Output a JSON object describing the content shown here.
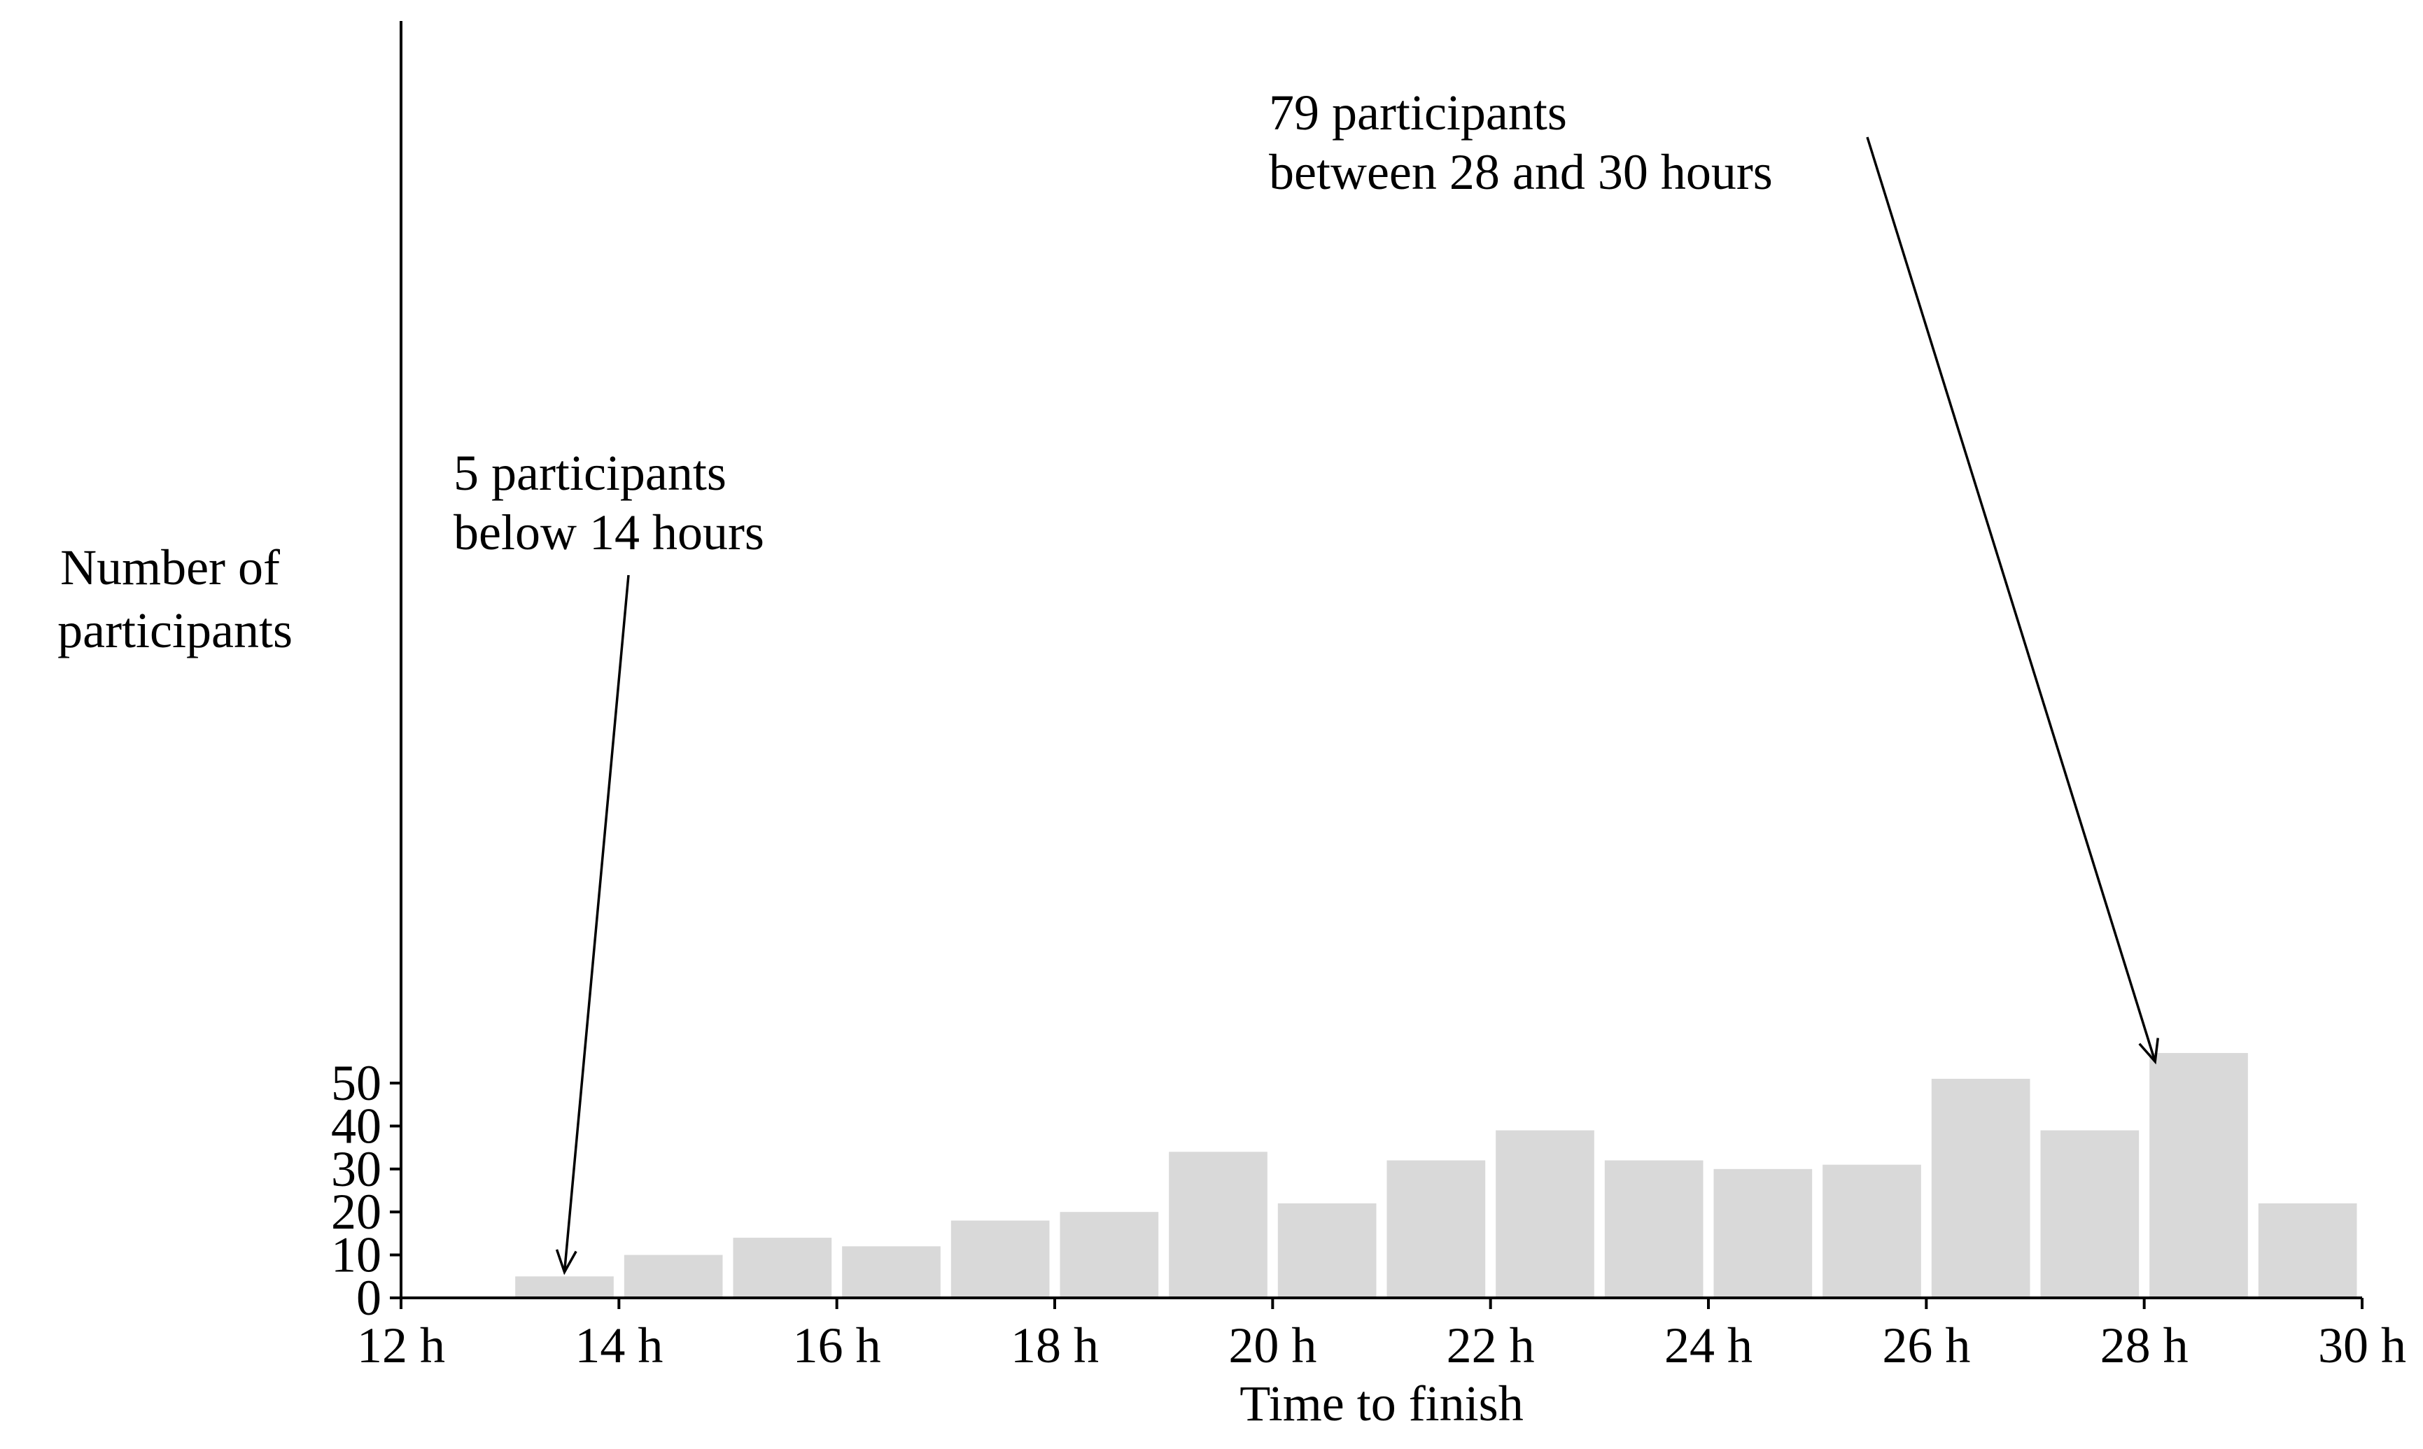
{
  "chart_data": {
    "type": "bar",
    "xlabel": "Time to finish",
    "ylabel_lines": [
      "Number of",
      "participants"
    ],
    "bin_start_hours": [
      13,
      14,
      15,
      16,
      17,
      18,
      19,
      20,
      21,
      22,
      23,
      24,
      25,
      26,
      27,
      28,
      29
    ],
    "bin_width_hours": 1,
    "values": [
      5,
      10,
      14,
      12,
      18,
      20,
      34,
      22,
      32,
      39,
      32,
      30,
      31,
      51,
      39,
      57,
      22
    ],
    "xlim": [
      12,
      30
    ],
    "ylim": [
      0,
      60
    ],
    "x_ticks": [
      12,
      14,
      16,
      18,
      20,
      22,
      24,
      26,
      28,
      30
    ],
    "x_tick_labels": [
      "12 h",
      "14 h",
      "16 h",
      "18 h",
      "20 h",
      "22 h",
      "24 h",
      "26 h",
      "28 h",
      "30 h"
    ],
    "y_ticks": [
      0,
      10,
      20,
      30,
      40,
      50
    ],
    "y_tick_labels": [
      "0",
      "10",
      "20",
      "30",
      "40",
      "50"
    ],
    "bar_color": "#d9d9d9",
    "grid": false,
    "annotations": [
      {
        "lines": [
          "5 participants",
          "below 14 hours"
        ],
        "target": [
          13.5,
          6
        ]
      },
      {
        "lines": [
          "79 participants",
          "between 28 and 30 hours"
        ],
        "target": [
          28.1,
          55
        ]
      }
    ]
  }
}
